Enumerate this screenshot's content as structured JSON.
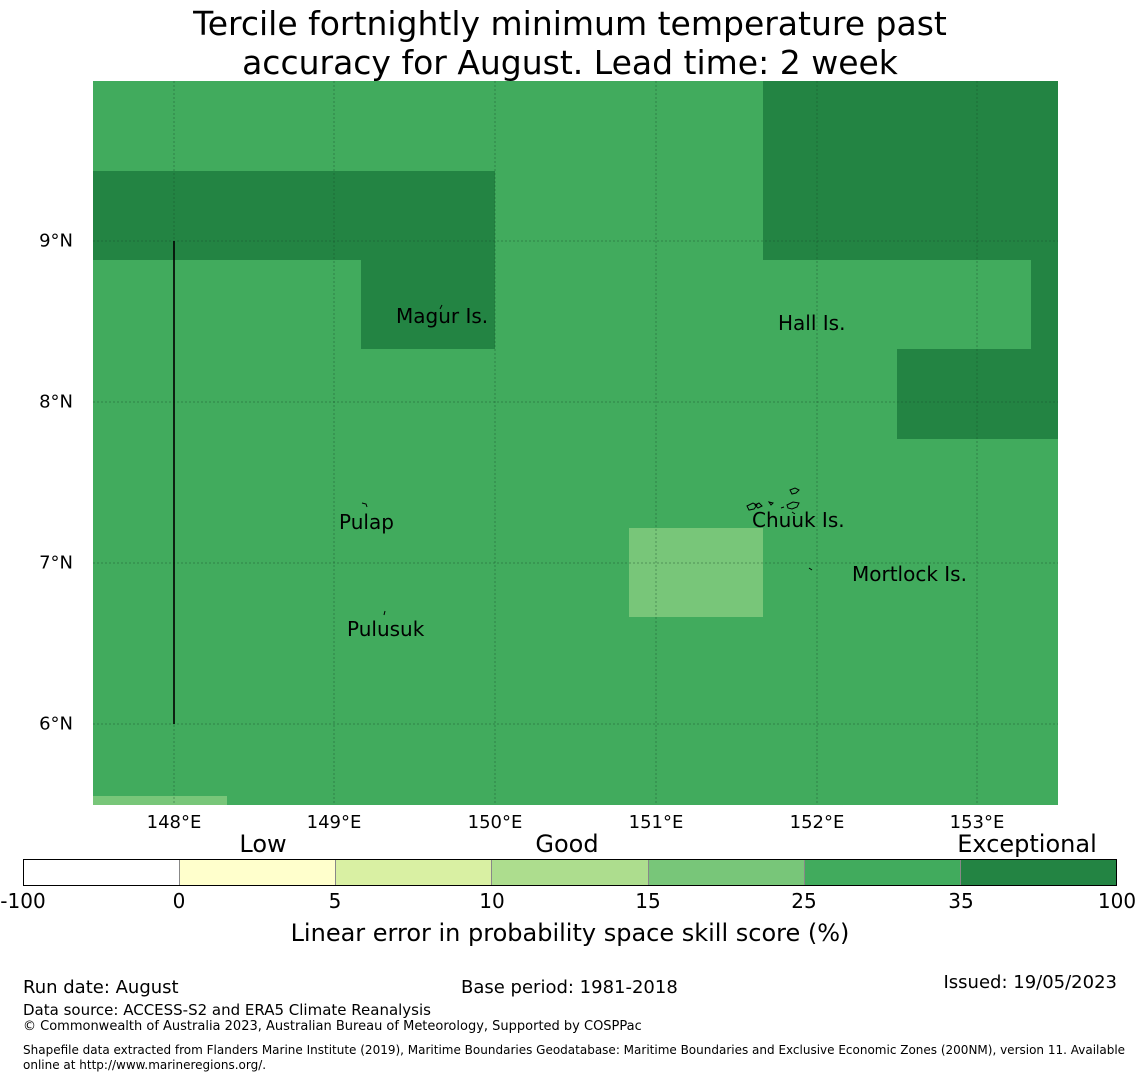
{
  "title_line1": "Tercile fortnightly minimum temperature past",
  "title_line2": "accuracy for August. Lead time: 2 week",
  "lat_labels": [
    "9°N",
    "8°N",
    "7°N",
    "6°N"
  ],
  "lon_labels": [
    "148°E",
    "149°E",
    "150°E",
    "151°E",
    "152°E",
    "153°E"
  ],
  "places": [
    "Magur Is.",
    "Hall Is.",
    "Pulap",
    "Chuuk Is.",
    "Mortlock Is.",
    "Pulusuk"
  ],
  "colors": {
    "cat_25_35": "#41ab5d",
    "cat_35_100": "#238443",
    "cat_15_25": "#78c679",
    "cat_10_15": "#addd8e",
    "cat_5_10": "#d9f0a3",
    "cat_0_5": "#ffffcc",
    "cat_neg": "#ffffff"
  },
  "colorbar": {
    "categories": [
      "Low",
      "Good",
      "Exceptional"
    ],
    "ticks": [
      "-100",
      "0",
      "5",
      "10",
      "15",
      "25",
      "35",
      "100"
    ],
    "label": "Linear error in probability space skill score (%)"
  },
  "footer": {
    "run_date": "Run date: August",
    "base_period": "Base period: 1981-2018",
    "issued": "Issued: 19/05/2023",
    "data_source": "Data source: ACCESS-S2 and ERA5 Climate Reanalysis",
    "copyright": "© Commonwealth of Australia 2023, Australian Bureau of Meteorology, Supported by COSPPac",
    "shapefile_line1": "Shapefile data extracted from Flanders Marine Institute (2019), Maritime Boundaries Geodatabase: Maritime Boundaries and Exclusive Economic Zones (200NM), version 11. Available",
    "shapefile_line2": "online at http://www.marineregions.org/."
  }
}
